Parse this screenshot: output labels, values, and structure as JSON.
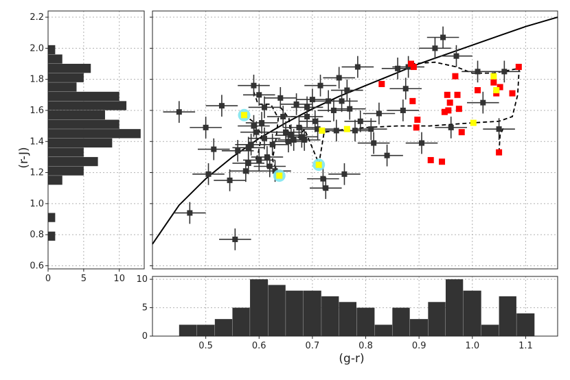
{
  "chart_data": [
    {
      "type": "scatter",
      "panel": "main",
      "xlabel": "(g-r)",
      "ylabel": "(r-J)",
      "xlim": [
        0.4,
        1.16
      ],
      "ylim": [
        0.58,
        2.24
      ],
      "xticks": [
        "0.5",
        "0.6",
        "0.7",
        "0.8",
        "0.9",
        "1.0",
        "1.1"
      ],
      "yticks": [
        "0.6",
        "0.8",
        "1.0",
        "1.2",
        "1.4",
        "1.6",
        "1.8",
        "2.0",
        "2.2"
      ],
      "grid": true,
      "curve": [
        [
          0.4,
          0.74
        ],
        [
          0.45,
          0.99
        ],
        [
          0.5,
          1.16
        ],
        [
          0.55,
          1.3
        ],
        [
          0.6,
          1.42
        ],
        [
          0.65,
          1.52
        ],
        [
          0.7,
          1.61
        ],
        [
          0.75,
          1.69
        ],
        [
          0.8,
          1.76
        ],
        [
          0.85,
          1.83
        ],
        [
          0.9,
          1.9
        ],
        [
          0.95,
          1.96
        ],
        [
          1.0,
          2.02
        ],
        [
          1.05,
          2.08
        ],
        [
          1.1,
          2.14
        ],
        [
          1.16,
          2.2
        ]
      ],
      "highlight_colors": {
        "points": "#333333",
        "red": "#ff0000",
        "yellow": "#ffff00",
        "cyan": "#7fe6ee",
        "line": "#000000"
      },
      "series": [
        {
          "marker": "dark-square",
          "points": [
            [
              0.555,
              0.77,
              0.03,
              0.07
            ],
            [
              0.47,
              0.94,
              0.03,
              0.07
            ],
            [
              0.505,
              1.19,
              0.03,
              0.07
            ],
            [
              0.515,
              1.35,
              0.03,
              0.07
            ],
            [
              0.5,
              1.49,
              0.03,
              0.07
            ],
            [
              0.45,
              1.59,
              0.03,
              0.07
            ],
            [
              0.53,
              1.63,
              0.03,
              0.07
            ],
            [
              0.56,
              1.34,
              0.03,
              0.07
            ],
            [
              0.545,
              1.15,
              0.03,
              0.07
            ],
            [
              0.575,
              1.21,
              0.03,
              0.07
            ],
            [
              0.58,
              1.36,
              0.03,
              0.07
            ],
            [
              0.585,
              1.38,
              0.03,
              0.07
            ],
            [
              0.59,
              1.5,
              0.03,
              0.07
            ],
            [
              0.595,
              1.46,
              0.03,
              0.07
            ],
            [
              0.6,
              1.28,
              0.03,
              0.07
            ],
            [
              0.58,
              1.26,
              0.03,
              0.07
            ],
            [
              0.59,
              1.76,
              0.03,
              0.07
            ],
            [
              0.6,
              1.7,
              0.03,
              0.07
            ],
            [
              0.61,
              1.62,
              0.03,
              0.07
            ],
            [
              0.605,
              1.52,
              0.03,
              0.07
            ],
            [
              0.61,
              1.42,
              0.03,
              0.07
            ],
            [
              0.615,
              1.3,
              0.03,
              0.07
            ],
            [
              0.62,
              1.24,
              0.03,
              0.07
            ],
            [
              0.625,
              1.38,
              0.03,
              0.07
            ],
            [
              0.63,
              1.21,
              0.03,
              0.07
            ],
            [
              0.64,
              1.68,
              0.03,
              0.07
            ],
            [
              0.645,
              1.56,
              0.03,
              0.07
            ],
            [
              0.65,
              1.46,
              0.03,
              0.07
            ],
            [
              0.655,
              1.4,
              0.03,
              0.07
            ],
            [
              0.66,
              1.44,
              0.03,
              0.07
            ],
            [
              0.665,
              1.41,
              0.03,
              0.07
            ],
            [
              0.67,
              1.64,
              0.03,
              0.07
            ],
            [
              0.675,
              1.49,
              0.03,
              0.07
            ],
            [
              0.68,
              1.43,
              0.03,
              0.07
            ],
            [
              0.685,
              1.41,
              0.03,
              0.07
            ],
            [
              0.69,
              1.56,
              0.03,
              0.07
            ],
            [
              0.69,
              1.62,
              0.03,
              0.07
            ],
            [
              0.7,
              1.67,
              0.03,
              0.07
            ],
            [
              0.705,
              1.53,
              0.03,
              0.07
            ],
            [
              0.71,
              1.48,
              0.03,
              0.07
            ],
            [
              0.715,
              1.76,
              0.03,
              0.07
            ],
            [
              0.72,
              1.16,
              0.03,
              0.07
            ],
            [
              0.725,
              1.1,
              0.03,
              0.07
            ],
            [
              0.73,
              1.66,
              0.03,
              0.07
            ],
            [
              0.74,
              1.6,
              0.03,
              0.07
            ],
            [
              0.745,
              1.47,
              0.03,
              0.07
            ],
            [
              0.75,
              1.81,
              0.03,
              0.07
            ],
            [
              0.755,
              1.66,
              0.03,
              0.07
            ],
            [
              0.76,
              1.19,
              0.03,
              0.07
            ],
            [
              0.765,
              1.73,
              0.03,
              0.07
            ],
            [
              0.77,
              1.61,
              0.03,
              0.07
            ],
            [
              0.78,
              1.47,
              0.03,
              0.07
            ],
            [
              0.785,
              1.88,
              0.03,
              0.07
            ],
            [
              0.79,
              1.53,
              0.03,
              0.07
            ],
            [
              0.81,
              1.48,
              0.03,
              0.07
            ],
            [
              0.815,
              1.39,
              0.03,
              0.07
            ],
            [
              0.825,
              1.58,
              0.03,
              0.07
            ],
            [
              0.84,
              1.31,
              0.03,
              0.07
            ],
            [
              0.86,
              1.87,
              0.03,
              0.07
            ],
            [
              0.87,
              1.6,
              0.03,
              0.07
            ],
            [
              0.88,
              1.88,
              0.03,
              0.07
            ],
            [
              0.905,
              1.39,
              0.03,
              0.07
            ],
            [
              0.93,
              2.0,
              0.03,
              0.07
            ],
            [
              0.945,
              2.07,
              0.03,
              0.07
            ],
            [
              0.96,
              1.49,
              0.03,
              0.07
            ],
            [
              0.97,
              1.95,
              0.03,
              0.07
            ],
            [
              1.01,
              1.85,
              0.03,
              0.07
            ],
            [
              1.02,
              1.65,
              0.03,
              0.07
            ],
            [
              1.05,
              1.48,
              0.03,
              0.07
            ],
            [
              1.06,
              1.85,
              0.03,
              0.07
            ],
            [
              0.875,
              1.74,
              0.03,
              0.07
            ]
          ]
        },
        {
          "marker": "red-square",
          "points": [
            [
              0.83,
              1.77
            ],
            [
              0.885,
              1.9
            ],
            [
              0.89,
              1.88
            ],
            [
              0.888,
              1.66
            ],
            [
              0.895,
              1.49
            ],
            [
              0.897,
              1.54
            ],
            [
              0.922,
              1.28
            ],
            [
              0.943,
              1.27
            ],
            [
              0.948,
              1.59
            ],
            [
              0.955,
              1.6
            ],
            [
              0.953,
              1.7
            ],
            [
              0.958,
              1.65
            ],
            [
              0.968,
              1.82
            ],
            [
              0.972,
              1.7
            ],
            [
              0.975,
              1.61
            ],
            [
              0.98,
              1.46
            ],
            [
              1.01,
              1.73
            ],
            [
              1.04,
              1.78
            ],
            [
              1.045,
              1.71
            ],
            [
              1.052,
              1.75
            ],
            [
              1.05,
              1.33
            ],
            [
              1.075,
              1.71
            ],
            [
              1.087,
              1.88
            ]
          ]
        },
        {
          "marker": "yellow-square",
          "points": [
            [
              0.572,
              1.57
            ],
            [
              0.638,
              1.18
            ],
            [
              0.712,
              1.25
            ],
            [
              0.718,
              1.47
            ],
            [
              0.765,
              1.48
            ],
            [
              1.002,
              1.52
            ],
            [
              1.04,
              1.82
            ],
            [
              1.045,
              1.73
            ]
          ]
        },
        {
          "marker": "cyan-ring",
          "points": [
            [
              0.572,
              1.57
            ],
            [
              0.638,
              1.18
            ],
            [
              0.712,
              1.25
            ]
          ]
        }
      ],
      "dashed_paths": [
        [
          [
            0.572,
            1.57
          ],
          [
            0.592,
            1.52
          ],
          [
            0.605,
            1.44
          ],
          [
            0.598,
            1.32
          ],
          [
            0.592,
            1.27
          ]
        ],
        [
          [
            0.59,
            1.72
          ],
          [
            0.598,
            1.64
          ],
          [
            0.622,
            1.64
          ],
          [
            0.636,
            1.55
          ],
          [
            0.632,
            1.42
          ],
          [
            0.625,
            1.28
          ],
          [
            0.635,
            1.2
          ]
        ],
        [
          [
            0.64,
            1.62
          ],
          [
            0.656,
            1.55
          ],
          [
            0.66,
            1.42
          ],
          [
            0.672,
            1.42
          ],
          [
            0.685,
            1.48
          ],
          [
            0.712,
            1.26
          ]
        ],
        [
          [
            0.712,
            1.25
          ],
          [
            0.722,
            1.46
          ],
          [
            0.765,
            1.48
          ],
          [
            0.8,
            1.49
          ],
          [
            0.86,
            1.5
          ],
          [
            0.92,
            1.5
          ],
          [
            1.0,
            1.52
          ],
          [
            1.05,
            1.53
          ],
          [
            1.075,
            1.56
          ],
          [
            1.085,
            1.7
          ],
          [
            1.088,
            1.88
          ]
        ],
        [
          [
            0.885,
            1.9
          ],
          [
            0.93,
            1.91
          ],
          [
            0.97,
            1.88
          ],
          [
            1.0,
            1.84
          ],
          [
            1.04,
            1.84
          ],
          [
            1.087,
            1.87
          ]
        ],
        [
          [
            1.05,
            1.33
          ],
          [
            1.052,
            1.44
          ],
          [
            1.06,
            1.5
          ]
        ]
      ]
    },
    {
      "type": "bar",
      "panel": "top-histogram",
      "orientation": "vertical",
      "xticks": [
        "0.5",
        "0.6",
        "0.7",
        "0.8",
        "0.9",
        "1.0",
        "1.1"
      ],
      "yticks": [
        "0",
        "5",
        "10"
      ],
      "ylim": [
        0,
        10.5
      ],
      "bin_edges": [
        0.45,
        0.483,
        0.517,
        0.55,
        0.583,
        0.617,
        0.65,
        0.683,
        0.717,
        0.75,
        0.783,
        0.817,
        0.85,
        0.883,
        0.917,
        0.95,
        0.983,
        1.017,
        1.05,
        1.083,
        1.117
      ],
      "values": [
        2,
        2,
        3,
        5,
        10,
        9,
        8,
        8,
        7,
        6,
        5,
        2,
        5,
        3,
        6,
        10,
        8,
        2,
        7,
        4
      ],
      "color": "#333333"
    },
    {
      "type": "bar",
      "panel": "left-histogram",
      "orientation": "horizontal",
      "xticks": [
        "0",
        "5",
        "10"
      ],
      "xlim": [
        0,
        13.5
      ],
      "bin_edges": [
        0.76,
        0.82,
        0.88,
        0.94,
        1.0,
        1.06,
        1.12,
        1.18,
        1.24,
        1.3,
        1.36,
        1.42,
        1.48,
        1.54,
        1.6,
        1.66,
        1.72,
        1.78,
        1.84,
        1.9,
        1.96,
        2.02,
        2.08
      ],
      "values": [
        1,
        0,
        1,
        0,
        0,
        0,
        2,
        5,
        7,
        5,
        9,
        13,
        10,
        8,
        11,
        10,
        4,
        5,
        6,
        2,
        1,
        0
      ],
      "color": "#333333"
    }
  ]
}
